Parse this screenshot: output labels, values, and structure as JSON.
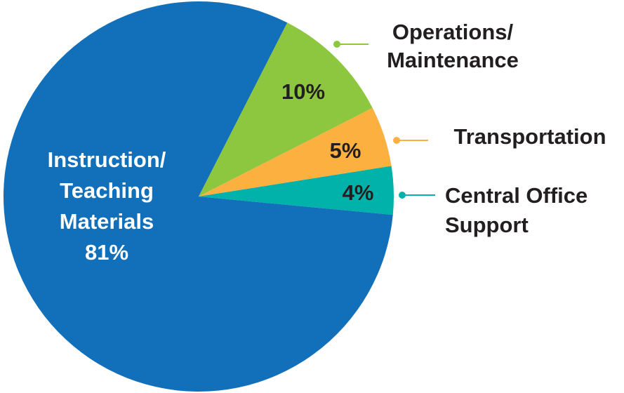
{
  "chart_data": {
    "type": "pie",
    "categories": [
      [
        "Operations/",
        "Maintenance"
      ],
      [
        "Transportation"
      ],
      [
        "Central Office",
        "Support"
      ],
      [
        "Instruction/",
        "Teaching",
        "Materials"
      ]
    ],
    "values": [
      10,
      5,
      4,
      81
    ],
    "value_labels": [
      "10%",
      "5%",
      "4%",
      "81%"
    ],
    "colors": [
      "#8dc63f",
      "#fbb040",
      "#00b2a9",
      "#1170b9"
    ]
  }
}
